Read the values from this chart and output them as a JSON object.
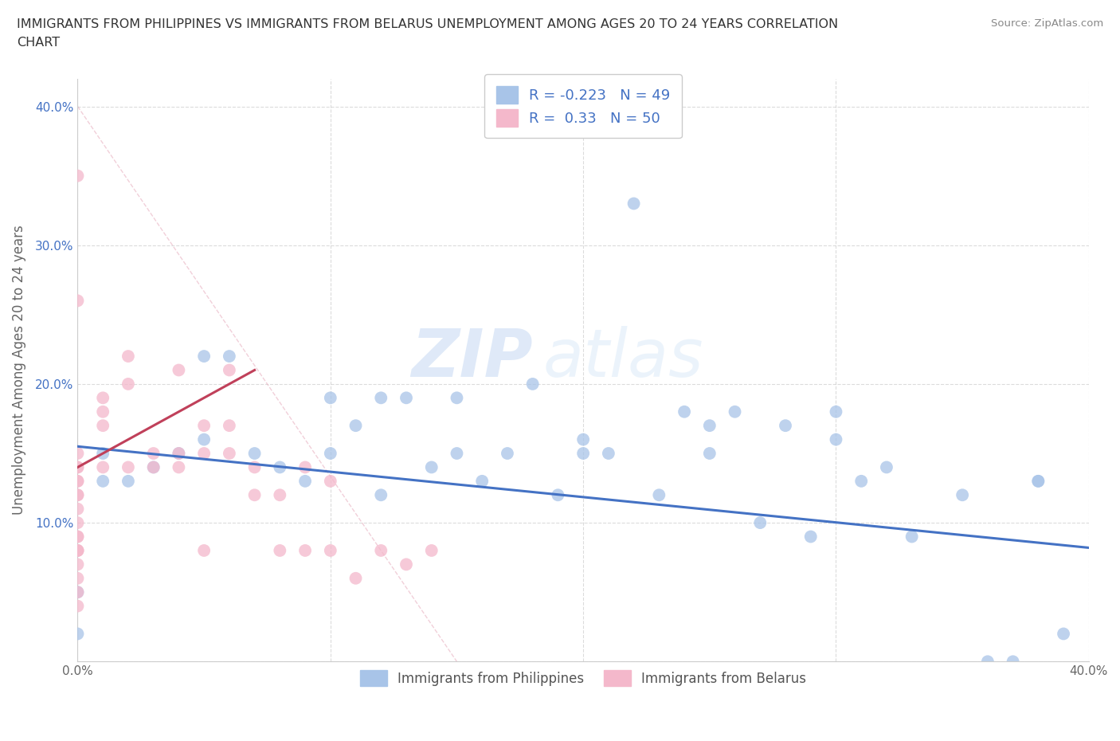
{
  "title_line1": "IMMIGRANTS FROM PHILIPPINES VS IMMIGRANTS FROM BELARUS UNEMPLOYMENT AMONG AGES 20 TO 24 YEARS CORRELATION",
  "title_line2": "CHART",
  "source": "Source: ZipAtlas.com",
  "ylabel": "Unemployment Among Ages 20 to 24 years",
  "xlim": [
    0.0,
    0.4
  ],
  "ylim": [
    0.0,
    0.42
  ],
  "R_philippines": -0.223,
  "N_philippines": 49,
  "R_belarus": 0.33,
  "N_belarus": 50,
  "color_philippines": "#a8c4e8",
  "color_belarus": "#f4b8cb",
  "color_philippines_line": "#4472c4",
  "color_belarus_line": "#c0405a",
  "watermark": "ZIPatlas",
  "philippines_x": [
    0.0,
    0.0,
    0.01,
    0.01,
    0.02,
    0.03,
    0.04,
    0.05,
    0.06,
    0.07,
    0.08,
    0.09,
    0.1,
    0.11,
    0.12,
    0.13,
    0.14,
    0.15,
    0.16,
    0.17,
    0.18,
    0.19,
    0.2,
    0.21,
    0.22,
    0.23,
    0.24,
    0.25,
    0.26,
    0.27,
    0.28,
    0.29,
    0.3,
    0.31,
    0.32,
    0.33,
    0.35,
    0.36,
    0.37,
    0.38,
    0.39,
    0.1,
    0.15,
    0.05,
    0.12,
    0.2,
    0.25,
    0.3,
    0.38
  ],
  "philippines_y": [
    0.05,
    0.02,
    0.13,
    0.15,
    0.13,
    0.14,
    0.15,
    0.16,
    0.22,
    0.15,
    0.14,
    0.13,
    0.15,
    0.17,
    0.12,
    0.19,
    0.14,
    0.15,
    0.13,
    0.15,
    0.2,
    0.12,
    0.16,
    0.15,
    0.33,
    0.12,
    0.18,
    0.17,
    0.18,
    0.1,
    0.17,
    0.09,
    0.18,
    0.13,
    0.14,
    0.09,
    0.12,
    0.0,
    0.0,
    0.13,
    0.02,
    0.19,
    0.19,
    0.22,
    0.19,
    0.15,
    0.15,
    0.16,
    0.13
  ],
  "belarus_x": [
    0.0,
    0.0,
    0.0,
    0.0,
    0.0,
    0.0,
    0.0,
    0.0,
    0.0,
    0.0,
    0.0,
    0.0,
    0.0,
    0.0,
    0.0,
    0.0,
    0.0,
    0.0,
    0.0,
    0.0,
    0.01,
    0.01,
    0.01,
    0.01,
    0.02,
    0.02,
    0.02,
    0.03,
    0.03,
    0.04,
    0.04,
    0.04,
    0.05,
    0.05,
    0.05,
    0.06,
    0.06,
    0.06,
    0.07,
    0.07,
    0.08,
    0.08,
    0.09,
    0.09,
    0.1,
    0.1,
    0.11,
    0.12,
    0.13,
    0.14
  ],
  "belarus_y": [
    0.14,
    0.13,
    0.12,
    0.11,
    0.1,
    0.09,
    0.08,
    0.07,
    0.06,
    0.05,
    0.04,
    0.08,
    0.09,
    0.12,
    0.13,
    0.35,
    0.26,
    0.15,
    0.14,
    0.08,
    0.17,
    0.18,
    0.14,
    0.19,
    0.2,
    0.22,
    0.14,
    0.14,
    0.15,
    0.14,
    0.21,
    0.15,
    0.17,
    0.15,
    0.08,
    0.17,
    0.21,
    0.15,
    0.14,
    0.12,
    0.12,
    0.08,
    0.14,
    0.08,
    0.13,
    0.08,
    0.06,
    0.08,
    0.07,
    0.08
  ]
}
